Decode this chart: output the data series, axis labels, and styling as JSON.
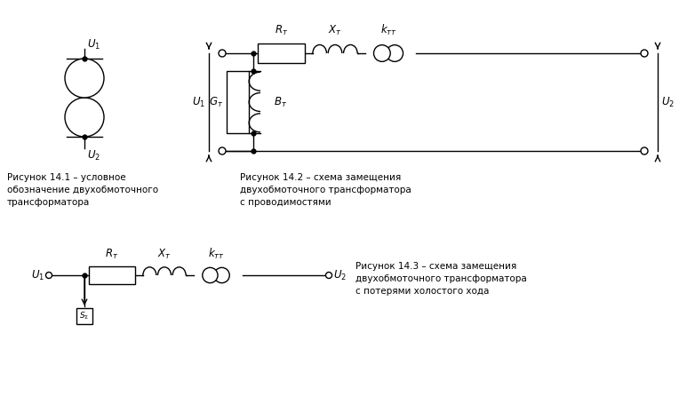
{
  "background_color": "#ffffff",
  "fig_width": 7.82,
  "fig_height": 4.46,
  "dpi": 100,
  "caption1": "Рисунок 14.1 – условное\nобозначение двухобмоточного\nтрансформатора",
  "caption2": "Рисунок 14.2 – схема замещения\nдвухобмоточного трансформатора\nс проводимостями",
  "caption3": "Рисунок 14.3 – схема замещения\nдвухобмоточного трансформатора\nс потерями холостого хода",
  "lw": 1.0
}
